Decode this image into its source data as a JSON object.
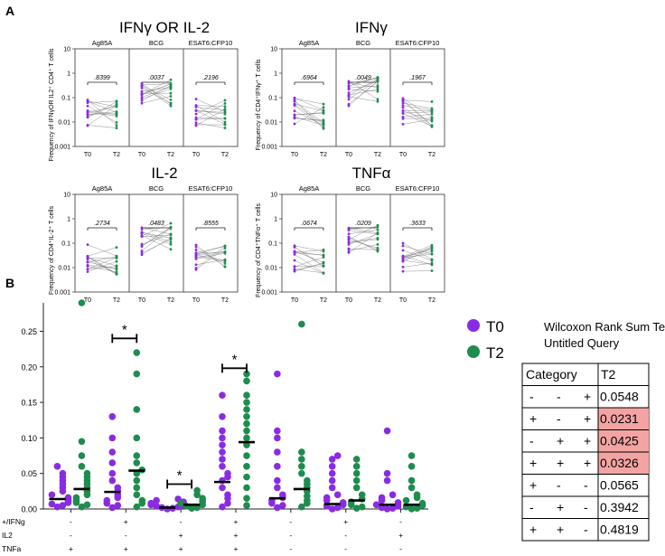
{
  "colors": {
    "t0": "#8a2be2",
    "t2": "#1e8c4e",
    "line": "#555555",
    "highlight": "#f4a3a3"
  },
  "panel_a": {
    "label": "A",
    "panels": [
      {
        "title": "IFNγ OR IL-2",
        "ylabel": "Frequency of IFNγOR IL2⁺ CD4⁺ T cells",
        "groups": [
          {
            "name": "Ag85A",
            "pvalue": ".8399"
          },
          {
            "name": "BCG",
            "pvalue": ".0037"
          },
          {
            "name": "ESAT6:CFP10",
            "pvalue": ".2196"
          }
        ]
      },
      {
        "title": "IFNγ",
        "ylabel": "Frequency of CD4⁺IFNγ⁺ T cells",
        "groups": [
          {
            "name": "Ag85A",
            "pvalue": ".6964"
          },
          {
            "name": "BCG",
            "pvalue": ".0049"
          },
          {
            "name": "ESAT6:CFP10",
            "pvalue": ".1967"
          }
        ]
      },
      {
        "title": "IL-2",
        "ylabel": "Frequency of CD4⁺IL-2⁺ T cells",
        "groups": [
          {
            "name": "Ag85A",
            "pvalue": ".2734"
          },
          {
            "name": "BCG",
            "pvalue": ".0483"
          },
          {
            "name": "ESAT6:CFP10",
            "pvalue": ".8555"
          }
        ]
      },
      {
        "title": "TNFα",
        "ylabel": "Frequency of CD4⁺TNFα⁺ T cells",
        "groups": [
          {
            "name": "Ag85A",
            "pvalue": ".0674"
          },
          {
            "name": "BCG",
            "pvalue": ".0209"
          },
          {
            "name": "ESAT6:CFP10",
            "pvalue": ".3633"
          }
        ]
      }
    ],
    "yticks": [
      "10",
      "1",
      "0.1",
      "0.01",
      "0.001"
    ],
    "xticks": [
      "T0",
      "T2"
    ]
  },
  "chart_data": {
    "type": "scatter",
    "panel_label": "B",
    "ylim": [
      0,
      0.29
    ],
    "yticks": [
      "0.00",
      "0.05",
      "0.10",
      "0.15",
      "0.20",
      "0.25"
    ],
    "legend": [
      "T0",
      "T2"
    ],
    "row_labels": [
      "+/IFNg",
      "IL2",
      "TNFa"
    ],
    "categories": [
      {
        "signs": [
          "-",
          "-",
          "+"
        ],
        "t0_median": 0.014,
        "t2_median": 0.028,
        "t0": [
          0.003,
          0.005,
          0.007,
          0.009,
          0.011,
          0.013,
          0.016,
          0.02,
          0.025,
          0.03,
          0.035,
          0.04,
          0.045,
          0.05,
          0.06
        ],
        "t2": [
          0.003,
          0.006,
          0.009,
          0.012,
          0.016,
          0.02,
          0.025,
          0.03,
          0.035,
          0.04,
          0.045,
          0.05,
          0.06,
          0.075,
          0.095,
          0.29
        ]
      },
      {
        "signs": [
          "+",
          "-",
          "+"
        ],
        "t0_median": 0.024,
        "t2_median": 0.054,
        "sig": true,
        "t0": [
          0.002,
          0.005,
          0.008,
          0.012,
          0.016,
          0.02,
          0.025,
          0.03,
          0.04,
          0.05,
          0.065,
          0.08,
          0.1,
          0.13
        ],
        "t2": [
          0.003,
          0.008,
          0.012,
          0.02,
          0.03,
          0.04,
          0.05,
          0.055,
          0.065,
          0.075,
          0.1,
          0.14,
          0.19,
          0.22
        ]
      },
      {
        "signs": [
          "-",
          "+",
          "+"
        ],
        "t0_median": 0.002,
        "t2_median": 0.006,
        "sig": true,
        "t0": [
          0.0,
          0.001,
          0.002,
          0.003,
          0.004,
          0.005,
          0.006,
          0.008,
          0.01,
          0.012,
          0.014
        ],
        "t2": [
          0.001,
          0.002,
          0.004,
          0.006,
          0.008,
          0.01,
          0.012,
          0.015,
          0.02,
          0.026
        ]
      },
      {
        "signs": [
          "+",
          "+",
          "+"
        ],
        "t0_median": 0.038,
        "t2_median": 0.094,
        "sig": true,
        "t0": [
          0.003,
          0.008,
          0.015,
          0.02,
          0.03,
          0.04,
          0.045,
          0.05,
          0.06,
          0.07,
          0.08,
          0.09,
          0.1,
          0.11,
          0.13,
          0.16
        ],
        "t2": [
          0.005,
          0.015,
          0.03,
          0.045,
          0.06,
          0.075,
          0.09,
          0.1,
          0.11,
          0.12,
          0.13,
          0.14,
          0.15,
          0.16,
          0.18,
          0.19
        ]
      },
      {
        "signs": [
          "-",
          "-",
          "-"
        ],
        "t0_median": 0.015,
        "t2_median": 0.028,
        "t0": [
          0.002,
          0.005,
          0.008,
          0.012,
          0.016,
          0.02,
          0.03,
          0.04,
          0.06,
          0.08,
          0.1,
          0.11,
          0.19
        ],
        "t2": [
          0.003,
          0.008,
          0.012,
          0.018,
          0.025,
          0.03,
          0.035,
          0.04,
          0.05,
          0.06,
          0.07,
          0.08,
          0.26
        ]
      },
      {
        "signs": [
          "+",
          "-",
          "-"
        ],
        "t0_median": 0.007,
        "t2_median": 0.012,
        "t0": [
          0.0,
          0.002,
          0.004,
          0.006,
          0.009,
          0.012,
          0.016,
          0.02,
          0.03,
          0.04,
          0.05,
          0.06,
          0.07,
          0.075
        ],
        "t2": [
          0.001,
          0.003,
          0.006,
          0.01,
          0.014,
          0.02,
          0.03,
          0.04,
          0.05,
          0.06,
          0.07
        ]
      },
      {
        "signs": [
          "-",
          "+",
          "-"
        ],
        "t0_median": 0.006,
        "t2_median": 0.006,
        "t0": [
          0.0,
          0.001,
          0.002,
          0.004,
          0.006,
          0.009,
          0.012,
          0.016,
          0.02,
          0.04,
          0.05,
          0.11
        ],
        "t2": [
          0.0,
          0.001,
          0.003,
          0.005,
          0.008,
          0.012,
          0.016,
          0.02,
          0.03,
          0.04,
          0.06,
          0.075
        ]
      }
    ]
  },
  "wilcoxon": {
    "title_line1": "Wilcoxon Rank Sum Test",
    "title_line2": "Untitled Query",
    "header_category": "Category",
    "header_t2": "T2",
    "rows": [
      {
        "signs": [
          "-",
          "-",
          "+"
        ],
        "t2": "0.0548",
        "highlight": false
      },
      {
        "signs": [
          "+",
          "-",
          "+"
        ],
        "t2": "0.0231",
        "highlight": true
      },
      {
        "signs": [
          "-",
          "+",
          "+"
        ],
        "t2": "0.0425",
        "highlight": true
      },
      {
        "signs": [
          "+",
          "+",
          "+"
        ],
        "t2": "0.0326",
        "highlight": true
      },
      {
        "signs": [
          "+",
          "-",
          "-"
        ],
        "t2": "0.0565",
        "highlight": false
      },
      {
        "signs": [
          "-",
          "+",
          "-"
        ],
        "t2": "0.3942",
        "highlight": false
      },
      {
        "signs": [
          "+",
          "+",
          "-"
        ],
        "t2": "0.4819",
        "highlight": false
      }
    ]
  }
}
